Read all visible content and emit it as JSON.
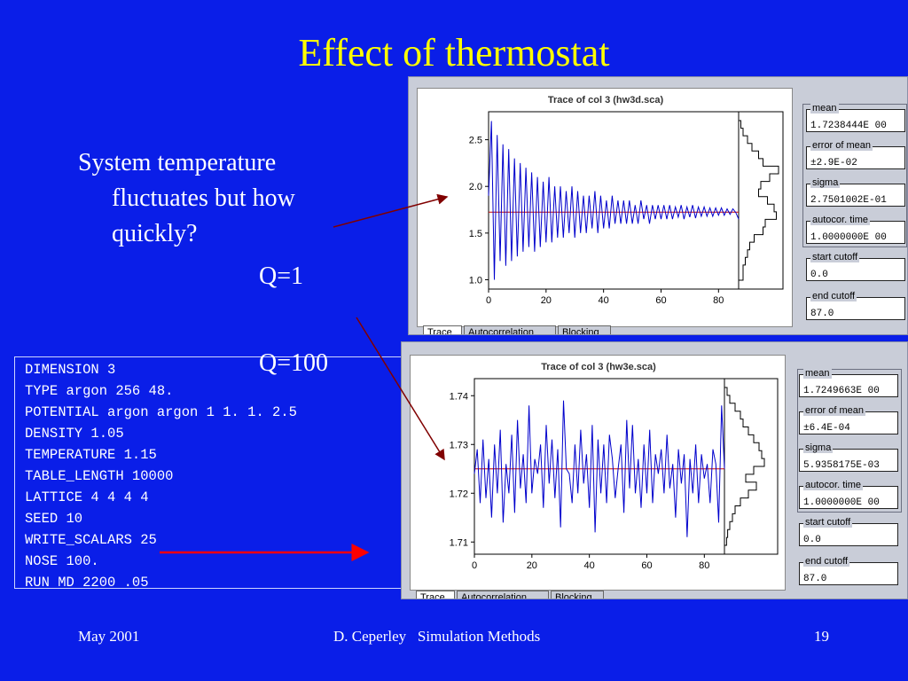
{
  "slide": {
    "title": "Effect of thermostat",
    "bullet_lines": [
      "System temperature",
      "fluctuates but how",
      "quickly?"
    ],
    "label_q1": "Q=1",
    "label_q100": "Q=100",
    "colors": {
      "background": "#0a1ee8",
      "title": "#ffff00",
      "text": "#ffffff",
      "arrow_dark": "#800000",
      "arrow_red": "#ff0000",
      "trace": "#0000cc",
      "mean_line": "#cc0000"
    }
  },
  "input_file": [
    "DIMENSION 3",
    "TYPE argon 256 48.",
    "POTENTIAL argon argon 1 1. 1. 2.5",
    "DENSITY 1.05",
    "TEMPERATURE 1.15",
    "TABLE_LENGTH 10000",
    "LATTICE 4 4 4 4",
    "SEED 10",
    "WRITE_SCALARS 25",
    "NOSE 100.",
    "RUN MD 2200 .05"
  ],
  "panels": [
    {
      "stats": [
        {
          "label": "mean",
          "value": "1.7238444E 00"
        },
        {
          "label": "error of mean",
          "value": "±2.9E-02"
        },
        {
          "label": "sigma",
          "value": "2.7501002E-01"
        },
        {
          "label": "autocor. time",
          "value": "1.0000000E 00"
        },
        {
          "label": "start cutoff",
          "value": "0.0"
        },
        {
          "label": "end cutoff",
          "value": "87.0"
        }
      ],
      "tabs": [
        "Trace",
        "Autocorrelation",
        "Blocking"
      ]
    },
    {
      "stats": [
        {
          "label": "mean",
          "value": "1.7249663E 00"
        },
        {
          "label": "error of mean",
          "value": "±6.4E-04"
        },
        {
          "label": "sigma",
          "value": "5.9358175E-03"
        },
        {
          "label": "autocor. time",
          "value": "1.0000000E 00"
        },
        {
          "label": "start cutoff",
          "value": "0.0"
        },
        {
          "label": "end cutoff",
          "value": "87.0"
        }
      ],
      "tabs": [
        "Trace",
        "Autocorrelation",
        "Blocking"
      ]
    }
  ],
  "chart_data": [
    {
      "type": "line",
      "title": "Trace of col 3 (hw3d.sca)",
      "xlabel": "",
      "ylabel": "",
      "xlim": [
        0,
        87
      ],
      "ylim": [
        0.9,
        2.8
      ],
      "xticks": [
        0,
        20,
        40,
        60,
        80
      ],
      "yticks": [
        1.0,
        1.5,
        2.0,
        2.5
      ],
      "xtick_labels": [
        "0",
        "20",
        "40",
        "60",
        "80"
      ],
      "ytick_labels": [
        "1.0",
        "1.5",
        "2.0",
        "2.5"
      ],
      "mean": 1.724,
      "series": [
        {
          "x": [
            0,
            1,
            2,
            3,
            4,
            5,
            6,
            7,
            8,
            9,
            10,
            11,
            12,
            13,
            14,
            15,
            16,
            17,
            18,
            19,
            20,
            21,
            22,
            23,
            24,
            25,
            26,
            27,
            28,
            29,
            30,
            31,
            32,
            33,
            34,
            35,
            36,
            37,
            38,
            39,
            40,
            41,
            42,
            43,
            44,
            45,
            46,
            47,
            48,
            49,
            50,
            51,
            52,
            53,
            54,
            55,
            56,
            57,
            58,
            59,
            60,
            61,
            62,
            63,
            64,
            65,
            66,
            67,
            68,
            69,
            70,
            71,
            72,
            73,
            74,
            75,
            76,
            77,
            78,
            79,
            80,
            81,
            82,
            83,
            84,
            85,
            86,
            87
          ],
          "y": [
            1.9,
            2.7,
            1.0,
            2.55,
            1.2,
            2.45,
            1.15,
            2.4,
            1.2,
            2.3,
            1.25,
            2.25,
            1.3,
            2.2,
            1.35,
            2.15,
            1.3,
            2.1,
            1.35,
            2.05,
            1.4,
            2.1,
            1.4,
            2.0,
            1.45,
            2.0,
            1.45,
            1.95,
            1.5,
            2.0,
            1.45,
            1.95,
            1.5,
            1.9,
            1.5,
            1.9,
            1.55,
            1.95,
            1.5,
            1.9,
            1.55,
            1.85,
            1.55,
            1.9,
            1.6,
            1.85,
            1.6,
            1.85,
            1.6,
            1.85,
            1.6,
            1.8,
            1.6,
            1.85,
            1.65,
            1.8,
            1.6,
            1.8,
            1.65,
            1.8,
            1.65,
            1.8,
            1.65,
            1.8,
            1.65,
            1.78,
            1.67,
            1.8,
            1.65,
            1.78,
            1.67,
            1.8,
            1.66,
            1.78,
            1.68,
            1.78,
            1.68,
            1.77,
            1.68,
            1.77,
            1.69,
            1.77,
            1.69,
            1.76,
            1.7,
            1.76,
            1.72,
            1.65
          ]
        }
      ],
      "histogram": [
        0.05,
        0.1,
        0.2,
        0.3,
        0.45,
        0.55,
        0.9,
        0.7,
        0.5,
        0.45,
        0.65,
        0.8,
        0.85,
        0.6,
        0.55,
        0.35,
        0.25,
        0.2,
        0.15,
        0.1,
        0.1
      ]
    },
    {
      "type": "line",
      "title": "Trace of col 3 (hw3e.sca)",
      "xlabel": "",
      "ylabel": "",
      "xlim": [
        0,
        87
      ],
      "ylim": [
        1.7075,
        1.7435
      ],
      "xticks": [
        0,
        20,
        40,
        60,
        80
      ],
      "yticks": [
        1.71,
        1.72,
        1.73,
        1.74
      ],
      "xtick_labels": [
        "0",
        "20",
        "40",
        "60",
        "80"
      ],
      "ytick_labels": [
        "1.71",
        "1.72",
        "1.73",
        "1.74"
      ],
      "mean": 1.725,
      "series": [
        {
          "x": [
            0,
            1,
            2,
            3,
            4,
            5,
            6,
            7,
            8,
            9,
            10,
            11,
            12,
            13,
            14,
            15,
            16,
            17,
            18,
            19,
            20,
            21,
            22,
            23,
            24,
            25,
            26,
            27,
            28,
            29,
            30,
            31,
            32,
            33,
            34,
            35,
            36,
            37,
            38,
            39,
            40,
            41,
            42,
            43,
            44,
            45,
            46,
            47,
            48,
            49,
            50,
            51,
            52,
            53,
            54,
            55,
            56,
            57,
            58,
            59,
            60,
            61,
            62,
            63,
            64,
            65,
            66,
            67,
            68,
            69,
            70,
            71,
            72,
            73,
            74,
            75,
            76,
            77,
            78,
            79,
            80,
            81,
            82,
            83,
            84,
            85,
            86,
            87
          ],
          "y": [
            1.724,
            1.729,
            1.718,
            1.731,
            1.719,
            1.727,
            1.715,
            1.73,
            1.72,
            1.733,
            1.714,
            1.726,
            1.72,
            1.732,
            1.716,
            1.735,
            1.721,
            1.728,
            1.718,
            1.738,
            1.72,
            1.727,
            1.724,
            1.73,
            1.717,
            1.734,
            1.722,
            1.731,
            1.719,
            1.729,
            1.713,
            1.739,
            1.725,
            1.724,
            1.718,
            1.73,
            1.72,
            1.733,
            1.722,
            1.728,
            1.717,
            1.734,
            1.712,
            1.731,
            1.72,
            1.73,
            1.718,
            1.732,
            1.727,
            1.719,
            1.725,
            1.73,
            1.716,
            1.735,
            1.721,
            1.734,
            1.72,
            1.727,
            1.717,
            1.73,
            1.72,
            1.733,
            1.718,
            1.728,
            1.724,
            1.729,
            1.72,
            1.732,
            1.721,
            1.726,
            1.715,
            1.729,
            1.722,
            1.728,
            1.711,
            1.727,
            1.72,
            1.73,
            1.718,
            1.728,
            1.723,
            1.726,
            1.718,
            1.729,
            1.726,
            1.714,
            1.738,
            1.725
          ]
        }
      ],
      "histogram": [
        0.05,
        0.1,
        0.2,
        0.3,
        0.35,
        0.45,
        0.55,
        0.65,
        0.7,
        0.75,
        0.55,
        0.4,
        0.6,
        0.45,
        0.3,
        0.2,
        0.15,
        0.1,
        0.06,
        0.04
      ]
    }
  ],
  "footer": {
    "date": "May 2001",
    "center": "D. Ceperley   Simulation Methods",
    "page": "19"
  }
}
